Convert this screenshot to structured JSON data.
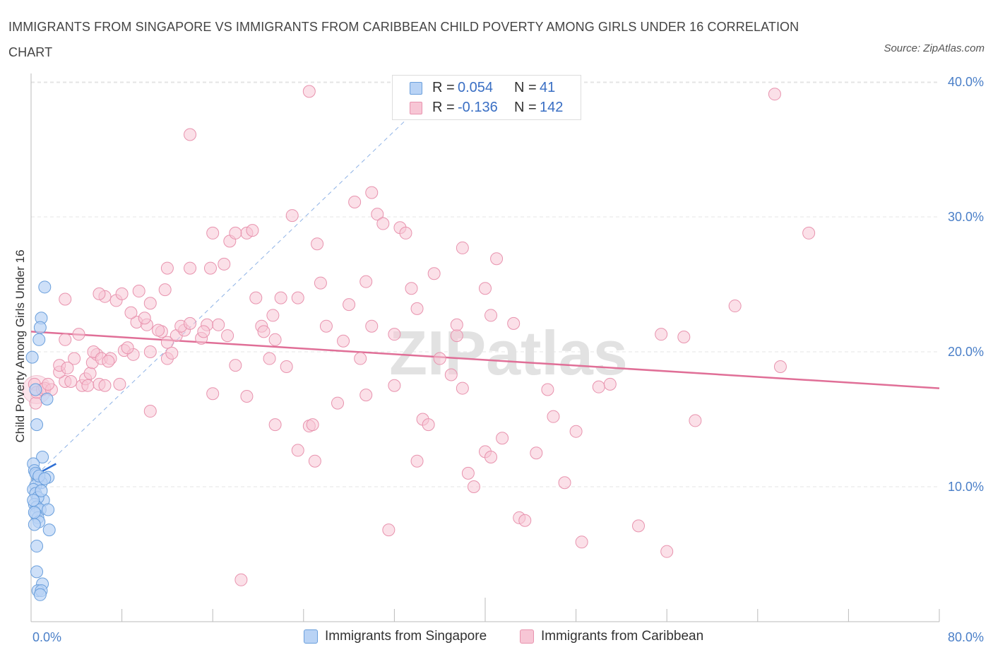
{
  "header": {
    "title": "IMMIGRANTS FROM SINGAPORE VS IMMIGRANTS FROM CARIBBEAN CHILD POVERTY AMONG GIRLS UNDER 16 CORRELATION CHART",
    "source": "Source: ZipAtlas.com"
  },
  "legend": {
    "row1": {
      "r_label": "R =",
      "r_value": "0.054",
      "n_label": "N =",
      "n_value": "41"
    },
    "row2": {
      "r_label": "R =",
      "r_value": "-0.136",
      "n_label": "N =",
      "n_value": "142"
    }
  },
  "bottom_legend": {
    "series1": "Immigrants from Singapore",
    "series2": "Immigrants from Caribbean"
  },
  "watermark": "ZIPatlas",
  "colors": {
    "singapore_fill": "#b9d3f5",
    "singapore_stroke": "#6a9fdc",
    "singapore_line": "#2f6fd4",
    "caribbean_fill": "#f7c6d5",
    "caribbean_stroke": "#e893ae",
    "caribbean_line": "#e06f97",
    "axis_text": "#4a7fc8"
  },
  "chart_data": {
    "type": "scatter",
    "title": "IMMIGRANTS FROM SINGAPORE VS IMMIGRANTS FROM CARIBBEAN CHILD POVERTY AMONG GIRLS UNDER 16 CORRELATION CHART",
    "xlabel": "",
    "ylabel": "Child Poverty Among Girls Under 16",
    "xlim": [
      0,
      80
    ],
    "ylim": [
      0,
      40
    ],
    "x_tick_labels": [
      "0.0%",
      "80.0%"
    ],
    "y_ticks": [
      10,
      20,
      30,
      40
    ],
    "y_tick_labels": [
      "10.0%",
      "20.0%",
      "30.0%",
      "40.0%"
    ],
    "grid": true,
    "legend_position": "top-center",
    "series": [
      {
        "name": "Immigrants from Singapore",
        "R": 0.054,
        "N": 41,
        "trend": {
          "x": [
            0.0,
            2.2
          ],
          "y": [
            10.7,
            11.7
          ]
        },
        "dashed_trend": {
          "x": [
            0.0,
            36.5
          ],
          "y": [
            10.5,
            40.0
          ]
        },
        "points": [
          [
            1.2,
            24.8
          ],
          [
            0.9,
            22.5
          ],
          [
            0.8,
            21.8
          ],
          [
            0.7,
            20.9
          ],
          [
            0.1,
            19.6
          ],
          [
            0.4,
            17.2
          ],
          [
            1.4,
            16.5
          ],
          [
            0.5,
            14.6
          ],
          [
            1.0,
            12.2
          ],
          [
            0.2,
            11.7
          ],
          [
            0.3,
            11.2
          ],
          [
            0.5,
            10.9
          ],
          [
            0.6,
            10.6
          ],
          [
            1.5,
            10.7
          ],
          [
            0.9,
            10.3
          ],
          [
            0.4,
            10.1
          ],
          [
            0.2,
            9.8
          ],
          [
            0.4,
            9.5
          ],
          [
            1.1,
            9.0
          ],
          [
            0.6,
            9.2
          ],
          [
            0.3,
            8.7
          ],
          [
            0.5,
            8.5
          ],
          [
            0.8,
            8.3
          ],
          [
            1.5,
            8.3
          ],
          [
            0.4,
            8.0
          ],
          [
            0.6,
            7.7
          ],
          [
            0.7,
            7.4
          ],
          [
            0.3,
            7.2
          ],
          [
            1.6,
            6.8
          ],
          [
            0.5,
            5.6
          ],
          [
            0.5,
            3.7
          ],
          [
            1.0,
            2.8
          ],
          [
            0.6,
            2.3
          ],
          [
            0.9,
            2.3
          ],
          [
            0.8,
            2.0
          ],
          [
            0.4,
            11.0
          ],
          [
            0.7,
            10.8
          ],
          [
            0.2,
            9.0
          ],
          [
            0.9,
            9.7
          ],
          [
            0.3,
            8.1
          ],
          [
            1.2,
            10.6
          ]
        ]
      },
      {
        "name": "Immigrants from Caribbean",
        "R": -0.136,
        "N": 142,
        "trend": {
          "x": [
            0.0,
            80.0
          ],
          "y": [
            21.5,
            17.3
          ]
        },
        "points": [
          [
            0.4,
            16.2
          ],
          [
            0.3,
            17.6
          ],
          [
            0.5,
            17.0
          ],
          [
            1.0,
            17.2
          ],
          [
            1.2,
            17.3
          ],
          [
            1.8,
            17.2
          ],
          [
            1.5,
            17.6
          ],
          [
            3.0,
            17.8
          ],
          [
            2.5,
            18.5
          ],
          [
            2.5,
            19.0
          ],
          [
            3.8,
            19.5
          ],
          [
            3.2,
            18.8
          ],
          [
            4.5,
            17.5
          ],
          [
            3.5,
            17.8
          ],
          [
            4.8,
            18.0
          ],
          [
            5.0,
            17.5
          ],
          [
            6.0,
            17.6
          ],
          [
            6.5,
            17.5
          ],
          [
            5.2,
            18.4
          ],
          [
            5.4,
            19.2
          ],
          [
            5.8,
            19.8
          ],
          [
            5.5,
            20.0
          ],
          [
            6.2,
            19.5
          ],
          [
            7.0,
            19.5
          ],
          [
            6.8,
            19.3
          ],
          [
            7.8,
            17.6
          ],
          [
            8.2,
            20.1
          ],
          [
            9.0,
            19.8
          ],
          [
            8.5,
            20.3
          ],
          [
            3.0,
            20.9
          ],
          [
            4.2,
            21.3
          ],
          [
            10.5,
            20.0
          ],
          [
            12.0,
            19.5
          ],
          [
            10.5,
            15.6
          ],
          [
            12.4,
            19.9
          ],
          [
            11.5,
            21.5
          ],
          [
            12.8,
            21.2
          ],
          [
            12.0,
            20.7
          ],
          [
            13.5,
            21.6
          ],
          [
            13.2,
            21.9
          ],
          [
            11.2,
            21.6
          ],
          [
            9.3,
            22.2
          ],
          [
            10.2,
            22.0
          ],
          [
            10.0,
            22.5
          ],
          [
            8.8,
            22.9
          ],
          [
            7.5,
            23.8
          ],
          [
            10.5,
            23.6
          ],
          [
            6.5,
            24.1
          ],
          [
            9.5,
            24.5
          ],
          [
            8.0,
            24.3
          ],
          [
            3.0,
            23.9
          ],
          [
            6.0,
            24.3
          ],
          [
            11.8,
            24.6
          ],
          [
            12.0,
            26.2
          ],
          [
            15.0,
            21.0
          ],
          [
            15.5,
            22.0
          ],
          [
            16.5,
            22.0
          ],
          [
            15.2,
            21.5
          ],
          [
            14.0,
            22.1
          ],
          [
            15.8,
            26.2
          ],
          [
            14.0,
            26.2
          ],
          [
            17.0,
            26.5
          ],
          [
            17.5,
            28.2
          ],
          [
            19.0,
            28.8
          ],
          [
            16.0,
            28.8
          ],
          [
            18.0,
            28.8
          ],
          [
            19.5,
            29.0
          ],
          [
            14.0,
            36.1
          ],
          [
            17.3,
            21.2
          ],
          [
            18.0,
            19.0
          ],
          [
            16.0,
            16.9
          ],
          [
            19.0,
            16.7
          ],
          [
            19.8,
            24.0
          ],
          [
            20.3,
            21.9
          ],
          [
            21.5,
            20.9
          ],
          [
            21.0,
            19.5
          ],
          [
            20.5,
            21.5
          ],
          [
            21.3,
            22.7
          ],
          [
            22.0,
            24.0
          ],
          [
            22.5,
            18.9
          ],
          [
            23.0,
            30.1
          ],
          [
            23.5,
            24.0
          ],
          [
            24.5,
            14.5
          ],
          [
            24.8,
            14.6
          ],
          [
            25.0,
            11.9
          ],
          [
            23.5,
            12.7
          ],
          [
            21.5,
            14.6
          ],
          [
            24.5,
            39.3
          ],
          [
            25.5,
            25.1
          ],
          [
            25.2,
            28.0
          ],
          [
            26.0,
            21.9
          ],
          [
            27.5,
            20.8
          ],
          [
            28.0,
            23.5
          ],
          [
            29.0,
            19.5
          ],
          [
            29.5,
            25.2
          ],
          [
            28.5,
            31.1
          ],
          [
            30.0,
            31.8
          ],
          [
            30.5,
            30.2
          ],
          [
            31.0,
            29.5
          ],
          [
            30.0,
            21.9
          ],
          [
            32.0,
            21.3
          ],
          [
            32.5,
            29.2
          ],
          [
            33.0,
            28.8
          ],
          [
            33.5,
            24.7
          ],
          [
            34.0,
            23.2
          ],
          [
            32.0,
            17.5
          ],
          [
            34.5,
            15.0
          ],
          [
            35.0,
            14.6
          ],
          [
            34.0,
            11.9
          ],
          [
            35.5,
            25.8
          ],
          [
            36.0,
            19.5
          ],
          [
            37.5,
            21.2
          ],
          [
            37.0,
            18.3
          ],
          [
            38.0,
            17.3
          ],
          [
            37.5,
            22.0
          ],
          [
            38.0,
            27.7
          ],
          [
            38.5,
            11.0
          ],
          [
            39.0,
            10.0
          ],
          [
            40.0,
            12.6
          ],
          [
            40.5,
            12.2
          ],
          [
            40.5,
            22.7
          ],
          [
            41.0,
            26.9
          ],
          [
            40.0,
            24.7
          ],
          [
            41.5,
            13.6
          ],
          [
            42.5,
            22.1
          ],
          [
            43.0,
            7.7
          ],
          [
            43.5,
            7.5
          ],
          [
            44.5,
            12.5
          ],
          [
            45.5,
            17.2
          ],
          [
            46.0,
            15.2
          ],
          [
            47.0,
            10.3
          ],
          [
            48.0,
            14.1
          ],
          [
            48.5,
            5.9
          ],
          [
            50.0,
            17.4
          ],
          [
            51.0,
            17.6
          ],
          [
            53.5,
            7.1
          ],
          [
            55.5,
            21.3
          ],
          [
            56.0,
            5.2
          ],
          [
            57.5,
            21.1
          ],
          [
            58.5,
            14.9
          ],
          [
            62.0,
            23.4
          ],
          [
            65.5,
            39.1
          ],
          [
            66.0,
            18.9
          ],
          [
            68.5,
            28.8
          ],
          [
            27.0,
            16.2
          ],
          [
            29.5,
            16.8
          ],
          [
            18.5,
            3.1
          ],
          [
            31.5,
            6.8
          ]
        ]
      }
    ]
  }
}
